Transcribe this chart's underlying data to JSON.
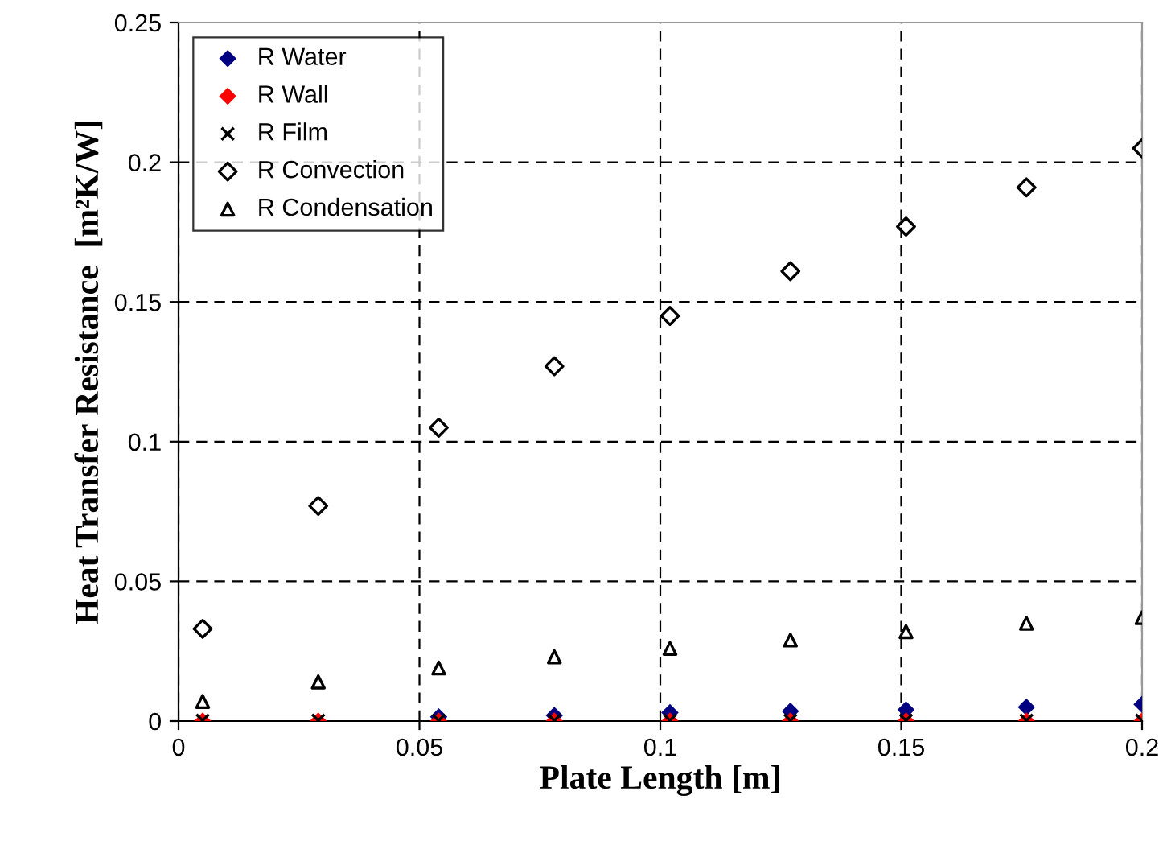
{
  "chart_data": {
    "type": "scatter",
    "xlabel": "Plate Length [m]",
    "ylabel": "Heat Transfer Resistance  [m²K/W]",
    "x": [
      0.005,
      0.029,
      0.054,
      0.078,
      0.102,
      0.127,
      0.151,
      0.176,
      0.2
    ],
    "xlim": [
      0,
      0.2
    ],
    "xticks": [
      0,
      0.05,
      0.1,
      0.15,
      0.2
    ],
    "ylim": [
      0,
      0.25
    ],
    "yticks": [
      0,
      0.05,
      0.1,
      0.15,
      0.2,
      0.25
    ],
    "grid": true,
    "line_style": "dashed",
    "legend": "top left",
    "series": [
      {
        "name": "R Water",
        "color": "#000080",
        "marker": "diamond",
        "values": [
          null,
          null,
          0.0015,
          0.002,
          0.003,
          0.0035,
          0.004,
          0.005,
          0.006
        ]
      },
      {
        "name": "R Wall",
        "color": "#ff0000",
        "marker": "diamond",
        "values": [
          0,
          0,
          0,
          0,
          0,
          0,
          0,
          0,
          0
        ]
      },
      {
        "name": "R Film",
        "color": "#000000",
        "marker": "cross",
        "values": [
          0.0002,
          0.0002,
          0.0002,
          0.0002,
          0.0002,
          0.0002,
          0.0002,
          0.0002,
          0.0002
        ]
      },
      {
        "name": "R Convection",
        "color": "#000000",
        "marker": "diamond",
        "values": [
          0.033,
          0.077,
          0.105,
          0.127,
          0.145,
          0.161,
          0.177,
          0.191,
          0.205
        ]
      },
      {
        "name": "R Condensation",
        "color": "#000000",
        "marker": "triangle",
        "values": [
          0.007,
          0.014,
          0.019,
          0.023,
          0.026,
          0.029,
          0.032,
          0.035,
          0.037
        ]
      }
    ]
  }
}
